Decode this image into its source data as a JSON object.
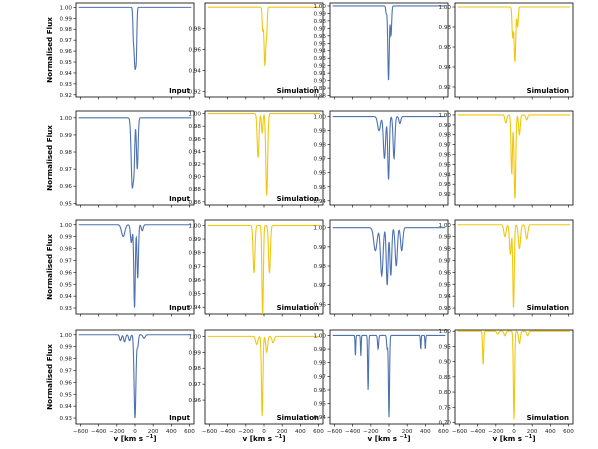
{
  "figure": {
    "ylabel": "Normalised Flux",
    "xlabel_main": "v [km s",
    "xlabel_sup": "−1",
    "xlabel_close": "]",
    "colors": {
      "input": "#4c72b0",
      "simulation": "#f2c60f",
      "axis": "#000000"
    }
  },
  "chart_data": [
    {
      "type": "line",
      "row": 0,
      "col": 0,
      "label": "Input",
      "color": "#4c72b0",
      "xlim": [
        -650,
        650
      ],
      "ylim": [
        0.918,
        1.004
      ],
      "yticks": [
        0.92,
        0.93,
        0.94,
        0.95,
        0.96,
        0.97,
        0.98,
        0.99,
        1.0
      ],
      "xticks": [],
      "lines": [
        {
          "c": 0,
          "d": 0.055,
          "w": 10
        },
        {
          "c": -18,
          "d": 0.02,
          "w": 6
        },
        {
          "c": 15,
          "d": 0.03,
          "w": 6
        }
      ]
    },
    {
      "type": "line",
      "row": 0,
      "col": 1,
      "label": "Simulation",
      "color": "#f2c60f",
      "xlim": [
        -650,
        650
      ],
      "ylim": [
        0.915,
        1.004
      ],
      "yticks": [
        0.92,
        0.94,
        0.96,
        0.98
      ],
      "xticks": [],
      "lines": [
        {
          "c": 10,
          "d": 0.055,
          "w": 10
        },
        {
          "c": -15,
          "d": 0.02,
          "w": 6
        },
        {
          "c": 30,
          "d": 0.02,
          "w": 6
        }
      ]
    },
    {
      "type": "line",
      "row": 0,
      "col": 2,
      "label": "",
      "color": "#4c72b0",
      "xlim": [
        -650,
        650
      ],
      "ylim": [
        0.878,
        1.004
      ],
      "yticks": [
        0.88,
        0.89,
        0.9,
        0.91,
        0.92,
        0.93,
        0.94,
        0.95,
        0.96,
        0.97,
        0.98,
        0.99,
        1.0
      ],
      "xticks": [],
      "lines": [
        {
          "c": -5,
          "d": 0.1,
          "w": 8
        },
        {
          "c": 22,
          "d": 0.04,
          "w": 7
        },
        {
          "c": -30,
          "d": 0.01,
          "w": 6
        }
      ]
    },
    {
      "type": "line",
      "row": 0,
      "col": 3,
      "label": "Simulation",
      "color": "#f2c60f",
      "xlim": [
        -650,
        650
      ],
      "ylim": [
        0.91,
        1.004
      ],
      "yticks": [
        0.92,
        0.94,
        0.96,
        0.98,
        1.0
      ],
      "xticks": [],
      "lines": [
        {
          "c": 10,
          "d": 0.055,
          "w": 9
        },
        {
          "c": -15,
          "d": 0.03,
          "w": 7
        },
        {
          "c": 40,
          "d": 0.02,
          "w": 7
        }
      ]
    },
    {
      "type": "line",
      "row": 1,
      "col": 0,
      "label": "Input",
      "color": "#4c72b0",
      "xlim": [
        -650,
        650
      ],
      "ylim": [
        0.949,
        1.004
      ],
      "yticks": [
        0.95,
        0.96,
        0.97,
        0.98,
        0.99,
        1.0
      ],
      "xticks": [],
      "lines": [
        {
          "c": -30,
          "d": 0.04,
          "w": 12
        },
        {
          "c": -10,
          "d": 0.022,
          "w": 8
        },
        {
          "c": 25,
          "d": 0.03,
          "w": 9
        }
      ]
    },
    {
      "type": "line",
      "row": 1,
      "col": 1,
      "label": "Simulation",
      "color": "#f2c60f",
      "xlim": [
        -650,
        650
      ],
      "ylim": [
        0.855,
        1.004
      ],
      "yticks": [
        0.86,
        0.88,
        0.9,
        0.92,
        0.94,
        0.96,
        0.98,
        1.0
      ],
      "xticks": [],
      "lines": [
        {
          "c": -65,
          "d": 0.07,
          "w": 10
        },
        {
          "c": -20,
          "d": 0.03,
          "w": 8
        },
        {
          "c": 30,
          "d": 0.13,
          "w": 10
        }
      ]
    },
    {
      "type": "line",
      "row": 1,
      "col": 2,
      "label": "",
      "color": "#4c72b0",
      "xlim": [
        -650,
        650
      ],
      "ylim": [
        0.937,
        1.004
      ],
      "yticks": [
        0.94,
        0.95,
        0.96,
        0.97,
        0.98,
        0.99,
        1.0
      ],
      "xticks": [],
      "lines": [
        {
          "c": -110,
          "d": 0.01,
          "w": 15
        },
        {
          "c": -50,
          "d": 0.03,
          "w": 12
        },
        {
          "c": -5,
          "d": 0.045,
          "w": 9
        },
        {
          "c": 55,
          "d": 0.03,
          "w": 10
        },
        {
          "c": 120,
          "d": 0.005,
          "w": 10
        }
      ]
    },
    {
      "type": "line",
      "row": 1,
      "col": 3,
      "label": "",
      "color": "#f2c60f",
      "xlim": [
        -650,
        650
      ],
      "ylim": [
        0.909,
        1.004
      ],
      "yticks": [
        0.92,
        0.93,
        0.94,
        0.95,
        0.96,
        0.97,
        0.98,
        0.99,
        1.0
      ],
      "xticks": [],
      "lines": [
        {
          "c": -90,
          "d": 0.008,
          "w": 10
        },
        {
          "c": -25,
          "d": 0.06,
          "w": 8
        },
        {
          "c": 10,
          "d": 0.085,
          "w": 9
        },
        {
          "c": 60,
          "d": 0.02,
          "w": 9
        },
        {
          "c": 140,
          "d": 0.005,
          "w": 10
        }
      ]
    },
    {
      "type": "line",
      "row": 2,
      "col": 0,
      "label": "Input",
      "color": "#4c72b0",
      "xlim": [
        -650,
        650
      ],
      "ylim": [
        0.925,
        1.004
      ],
      "yticks": [
        0.93,
        0.94,
        0.95,
        0.96,
        0.97,
        0.98,
        0.99,
        1.0
      ],
      "xticks": [],
      "lines": [
        {
          "c": -130,
          "d": 0.01,
          "w": 18
        },
        {
          "c": -40,
          "d": 0.015,
          "w": 10
        },
        {
          "c": -5,
          "d": 0.07,
          "w": 8
        },
        {
          "c": 30,
          "d": 0.045,
          "w": 8
        },
        {
          "c": 80,
          "d": 0.005,
          "w": 10
        }
      ]
    },
    {
      "type": "line",
      "row": 2,
      "col": 1,
      "label": "Simulation",
      "color": "#f2c60f",
      "xlim": [
        -650,
        650
      ],
      "ylim": [
        0.935,
        1.004
      ],
      "yticks": [
        0.94,
        0.95,
        0.96,
        0.97,
        0.98,
        0.99,
        1.0
      ],
      "xticks": [],
      "lines": [
        {
          "c": -110,
          "d": 0.035,
          "w": 10
        },
        {
          "c": -15,
          "d": 0.065,
          "w": 8
        },
        {
          "c": 60,
          "d": 0.035,
          "w": 10
        }
      ]
    },
    {
      "type": "line",
      "row": 2,
      "col": 2,
      "label": "",
      "color": "#4c72b0",
      "xlim": [
        -650,
        650
      ],
      "ylim": [
        0.955,
        1.004
      ],
      "yticks": [
        0.96,
        0.97,
        0.98,
        0.99,
        1.0
      ],
      "xticks": [],
      "lines": [
        {
          "c": -150,
          "d": 0.012,
          "w": 18
        },
        {
          "c": -80,
          "d": 0.025,
          "w": 14
        },
        {
          "c": -20,
          "d": 0.03,
          "w": 10
        },
        {
          "c": 20,
          "d": 0.025,
          "w": 10
        },
        {
          "c": 80,
          "d": 0.02,
          "w": 12
        },
        {
          "c": 140,
          "d": 0.012,
          "w": 12
        }
      ]
    },
    {
      "type": "line",
      "row": 2,
      "col": 3,
      "label": "Simulation",
      "color": "#f2c60f",
      "xlim": [
        -650,
        650
      ],
      "ylim": [
        0.925,
        1.004
      ],
      "yticks": [
        0.93,
        0.94,
        0.95,
        0.96,
        0.97,
        0.98,
        0.99,
        1.0
      ],
      "xticks": [],
      "lines": [
        {
          "c": -100,
          "d": 0.01,
          "w": 12
        },
        {
          "c": -40,
          "d": 0.025,
          "w": 10
        },
        {
          "c": -5,
          "d": 0.07,
          "w": 8
        },
        {
          "c": 60,
          "d": 0.02,
          "w": 12
        },
        {
          "c": 140,
          "d": 0.012,
          "w": 12
        }
      ]
    },
    {
      "type": "line",
      "row": 3,
      "col": 0,
      "label": "Input",
      "color": "#4c72b0",
      "xlim": [
        -650,
        650
      ],
      "ylim": [
        0.925,
        1.004
      ],
      "yticks": [
        0.93,
        0.94,
        0.95,
        0.96,
        0.97,
        0.98,
        0.99,
        1.0
      ],
      "xticks": [
        -600,
        -400,
        -200,
        0,
        200,
        400,
        600
      ],
      "lines": [
        {
          "c": -160,
          "d": 0.005,
          "w": 10
        },
        {
          "c": -115,
          "d": 0.006,
          "w": 10
        },
        {
          "c": -60,
          "d": 0.005,
          "w": 10
        },
        {
          "c": 0,
          "d": 0.07,
          "w": 10
        },
        {
          "c": 30,
          "d": 0.01,
          "w": 8
        },
        {
          "c": 100,
          "d": 0.003,
          "w": 12
        }
      ]
    },
    {
      "type": "line",
      "row": 3,
      "col": 1,
      "label": "Simulation",
      "color": "#f2c60f",
      "xlim": [
        -650,
        650
      ],
      "ylim": [
        0.945,
        1.004
      ],
      "yticks": [
        0.96,
        0.97,
        0.98,
        0.99,
        1.0
      ],
      "xticks": [
        -600,
        -400,
        -200,
        0,
        200,
        400,
        600
      ],
      "lines": [
        {
          "c": -80,
          "d": 0.005,
          "w": 12
        },
        {
          "c": -20,
          "d": 0.05,
          "w": 8
        },
        {
          "c": 30,
          "d": 0.01,
          "w": 10
        },
        {
          "c": 100,
          "d": 0.004,
          "w": 12
        }
      ]
    },
    {
      "type": "line",
      "row": 3,
      "col": 2,
      "label": "",
      "color": "#4c72b0",
      "xlim": [
        -650,
        650
      ],
      "ylim": [
        0.935,
        1.004
      ],
      "yticks": [
        0.94,
        0.95,
        0.96,
        0.97,
        0.98,
        0.99,
        1.0
      ],
      "xticks": [
        -600,
        -400,
        -200,
        0,
        200,
        400,
        600
      ],
      "lines": [
        {
          "c": -370,
          "d": 0.015,
          "w": 4
        },
        {
          "c": -310,
          "d": 0.015,
          "w": 4
        },
        {
          "c": -230,
          "d": 0.04,
          "w": 5
        },
        {
          "c": -120,
          "d": 0.01,
          "w": 6
        },
        {
          "c": -20,
          "d": 0.01,
          "w": 6
        },
        {
          "c": 0,
          "d": 0.06,
          "w": 6
        },
        {
          "c": 350,
          "d": 0.01,
          "w": 4
        },
        {
          "c": 400,
          "d": 0.01,
          "w": 4
        }
      ]
    },
    {
      "type": "line",
      "row": 3,
      "col": 3,
      "label": "Simulation",
      "color": "#f2c60f",
      "xlim": [
        -650,
        650
      ],
      "ylim": [
        0.695,
        1.004
      ],
      "yticks": [
        0.7,
        0.75,
        0.8,
        0.85,
        0.9,
        0.95,
        1.0
      ],
      "xticks": [
        -600,
        -400,
        -200,
        0,
        200,
        400,
        600
      ],
      "lines": [
        {
          "c": -340,
          "d": 0.11,
          "w": 6
        },
        {
          "c": -180,
          "d": 0.01,
          "w": 10
        },
        {
          "c": -100,
          "d": 0.015,
          "w": 10
        },
        {
          "c": 0,
          "d": 0.29,
          "w": 7
        },
        {
          "c": 60,
          "d": 0.04,
          "w": 10
        },
        {
          "c": 150,
          "d": 0.015,
          "w": 10
        }
      ]
    }
  ]
}
